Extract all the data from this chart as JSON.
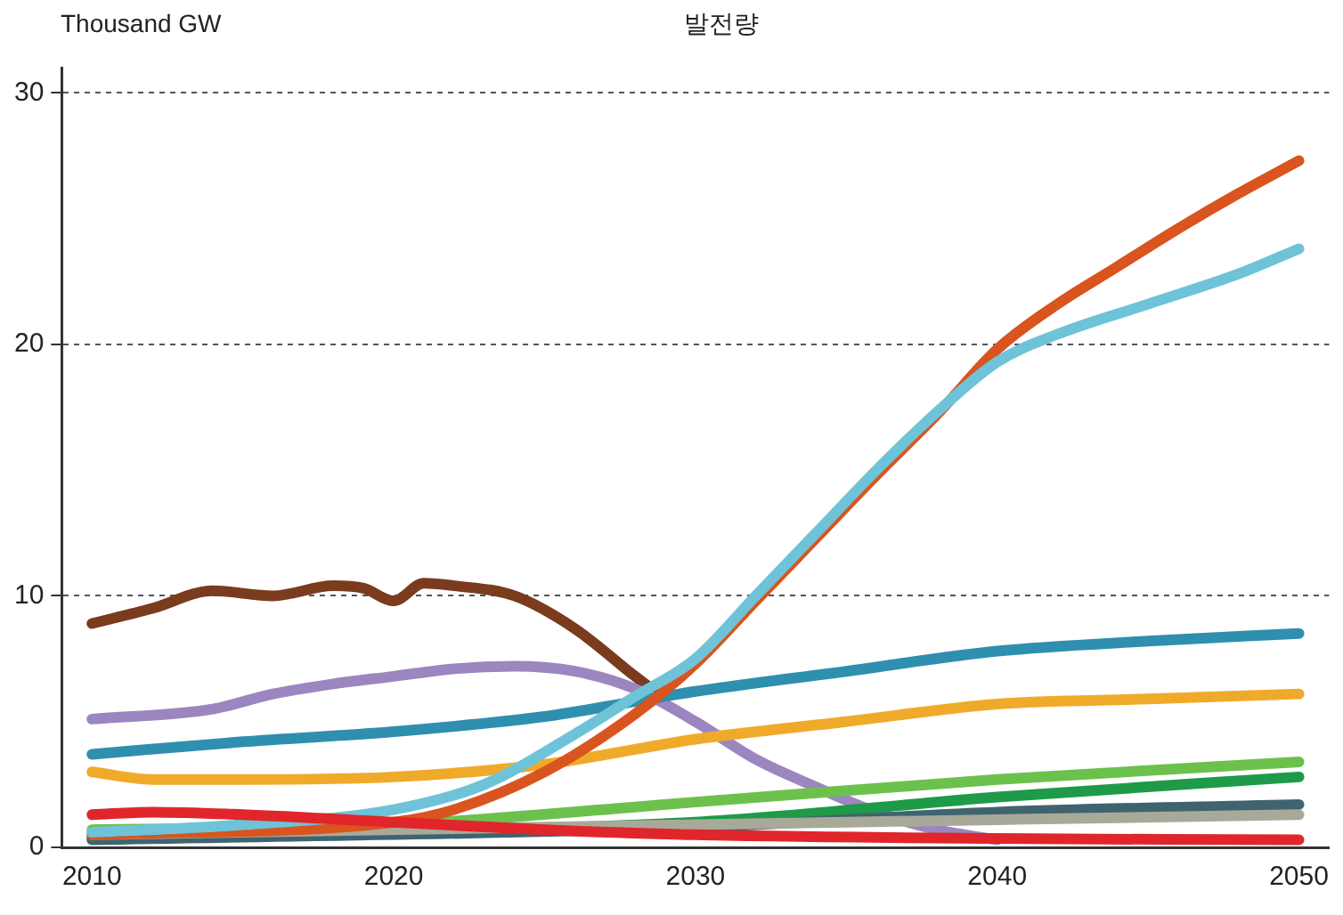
{
  "chart_data": {
    "type": "line",
    "title": "발전량",
    "ylabel": "Thousand GW",
    "xlim": [
      2009,
      2051
    ],
    "xticks": [
      2010,
      2020,
      2030,
      2040,
      2050
    ],
    "ylim": [
      0,
      31
    ],
    "yticks": [
      0,
      10,
      20,
      30
    ],
    "grid": "y",
    "legend": false,
    "marker": "none",
    "line_style": "solid",
    "series": [
      {
        "color": "#7a3b1e",
        "x": [
          2010,
          2012,
          2014,
          2016,
          2018,
          2019,
          2020,
          2021,
          2022,
          2024,
          2026,
          2028,
          2029
        ],
        "values": [
          8.9,
          9.5,
          10.2,
          10.0,
          10.4,
          10.3,
          9.8,
          10.5,
          10.4,
          10.0,
          8.7,
          6.8,
          5.9
        ]
      },
      {
        "color": "#9b86c0",
        "x": [
          2010,
          2014,
          2016,
          2018,
          2020,
          2022,
          2024,
          2026,
          2028,
          2030,
          2032,
          2034,
          2036,
          2038,
          2040
        ],
        "values": [
          5.1,
          5.5,
          6.1,
          6.5,
          6.8,
          7.1,
          7.2,
          7.0,
          6.3,
          5.0,
          3.5,
          2.4,
          1.4,
          0.7,
          0.3
        ]
      },
      {
        "color": "#2e8fae",
        "x": [
          2010,
          2015,
          2020,
          2025,
          2028,
          2030,
          2035,
          2040,
          2045,
          2050
        ],
        "values": [
          3.7,
          4.2,
          4.6,
          5.2,
          5.8,
          6.2,
          7.0,
          7.8,
          8.2,
          8.5
        ]
      },
      {
        "color": "#f0aa2a",
        "x": [
          2010,
          2012,
          2015,
          2020,
          2025,
          2030,
          2035,
          2040,
          2045,
          2050
        ],
        "values": [
          3.0,
          2.7,
          2.7,
          2.8,
          3.3,
          4.3,
          5.0,
          5.7,
          5.9,
          6.1
        ]
      },
      {
        "color": "#6cc14d",
        "x": [
          2010,
          2020,
          2030,
          2040,
          2050
        ],
        "values": [
          0.7,
          0.9,
          1.8,
          2.7,
          3.4
        ]
      },
      {
        "color": "#1e9a48",
        "x": [
          2010,
          2030,
          2040,
          2050
        ],
        "values": [
          0.4,
          1.0,
          2.0,
          2.8
        ]
      },
      {
        "color": "#3f6470",
        "x": [
          2010,
          2030,
          2040,
          2050
        ],
        "values": [
          0.3,
          0.8,
          1.4,
          1.7
        ]
      },
      {
        "color": "#a9a99a",
        "x": [
          2010,
          2030,
          2040,
          2050
        ],
        "values": [
          0.5,
          0.9,
          1.1,
          1.3
        ]
      },
      {
        "color": "#d9541e",
        "x": [
          2010,
          2020,
          2022,
          2025,
          2028,
          2030,
          2032,
          2034,
          2036,
          2038,
          2040,
          2042,
          2044,
          2046,
          2048,
          2050
        ],
        "values": [
          0.5,
          1.0,
          1.5,
          3.0,
          5.3,
          7.3,
          9.8,
          12.3,
          14.8,
          17.2,
          19.8,
          21.6,
          23.1,
          24.6,
          26.0,
          27.3
        ]
      },
      {
        "color": "#6ec3d8",
        "x": [
          2010,
          2015,
          2020,
          2023,
          2026,
          2028,
          2030,
          2032,
          2034,
          2036,
          2038,
          2040,
          2042,
          2045,
          2048,
          2050
        ],
        "values": [
          0.6,
          0.9,
          1.5,
          2.5,
          4.5,
          6.0,
          7.5,
          10.0,
          12.5,
          15.0,
          17.3,
          19.3,
          20.4,
          21.6,
          22.8,
          23.8
        ]
      },
      {
        "color": "#e0262a",
        "x": [
          2010,
          2012,
          2015,
          2020,
          2025,
          2030,
          2040,
          2050
        ],
        "values": [
          1.3,
          1.4,
          1.3,
          1.0,
          0.7,
          0.5,
          0.35,
          0.3
        ]
      }
    ]
  }
}
